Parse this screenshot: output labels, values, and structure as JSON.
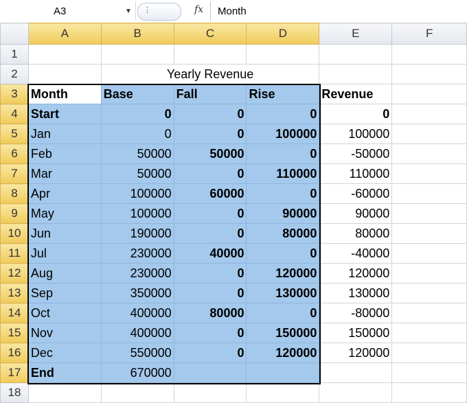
{
  "formula_bar": {
    "name_box": "A3",
    "fx_label": "fx",
    "formula": "Month"
  },
  "columns": [
    "A",
    "B",
    "C",
    "D",
    "E",
    "F"
  ],
  "rows": [
    "1",
    "2",
    "3",
    "4",
    "5",
    "6",
    "7",
    "8",
    "9",
    "10",
    "11",
    "12",
    "13",
    "14",
    "15",
    "16",
    "17",
    "18"
  ],
  "sheet": {
    "title": "Yearly Revenue",
    "headers": [
      "Month",
      "Base",
      "Fall",
      "Rise",
      "Revenue"
    ],
    "data": [
      [
        "Start",
        "0",
        "0",
        "0",
        "0"
      ],
      [
        "Jan",
        "0",
        "0",
        "100000",
        "100000"
      ],
      [
        "Feb",
        "50000",
        "50000",
        "0",
        "-50000"
      ],
      [
        "Mar",
        "50000",
        "0",
        "110000",
        "110000"
      ],
      [
        "Apr",
        "100000",
        "60000",
        "0",
        "-60000"
      ],
      [
        "May",
        "100000",
        "0",
        "90000",
        "90000"
      ],
      [
        "Jun",
        "190000",
        "0",
        "80000",
        "80000"
      ],
      [
        "Jul",
        "230000",
        "40000",
        "0",
        "-40000"
      ],
      [
        "Aug",
        "230000",
        "0",
        "120000",
        "120000"
      ],
      [
        "Sep",
        "350000",
        "0",
        "130000",
        "130000"
      ],
      [
        "Oct",
        "400000",
        "80000",
        "0",
        "-80000"
      ],
      [
        "Nov",
        "400000",
        "0",
        "150000",
        "150000"
      ],
      [
        "Dec",
        "550000",
        "0",
        "120000",
        "120000"
      ],
      [
        "End",
        "670000",
        "",
        "",
        ""
      ]
    ]
  },
  "colors": {
    "selection_fill": "#a4c9ec",
    "header_highlight": "#f0cb5a"
  }
}
